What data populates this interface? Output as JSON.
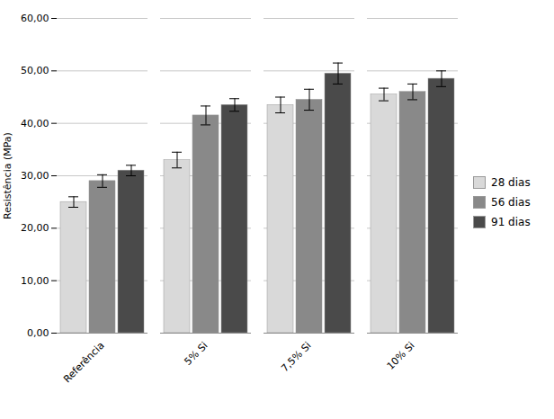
{
  "chart_data": {
    "type": "bar",
    "categories": [
      "Referência",
      "5% Si",
      "7,5% Si",
      "10% Si"
    ],
    "series": [
      {
        "name": "28 dias",
        "color": "#d9d9d9",
        "values": [
          25.0,
          33.0,
          43.5,
          45.5
        ],
        "errors": [
          1.0,
          1.5,
          1.5,
          1.2
        ]
      },
      {
        "name": "56 dias",
        "color": "#898989",
        "values": [
          29.0,
          41.5,
          44.5,
          46.0
        ],
        "errors": [
          1.2,
          1.8,
          2.0,
          1.5
        ]
      },
      {
        "name": "91 dias",
        "color": "#4a4a4a",
        "values": [
          31.0,
          43.5,
          49.5,
          48.5
        ],
        "errors": [
          1.0,
          1.2,
          2.0,
          1.5
        ]
      }
    ],
    "ylabel": "Resistência (MPa)",
    "ylim": [
      0,
      60
    ],
    "yticks": [
      {
        "value": 0,
        "label": "0,00"
      },
      {
        "value": 10,
        "label": "10,00"
      },
      {
        "value": 20,
        "label": "20,00"
      },
      {
        "value": 30,
        "label": "30,00"
      },
      {
        "value": 40,
        "label": "40,00"
      },
      {
        "value": 50,
        "label": "50,00"
      },
      {
        "value": 60,
        "label": "60,00"
      }
    ],
    "grid": true,
    "legend": "right"
  }
}
